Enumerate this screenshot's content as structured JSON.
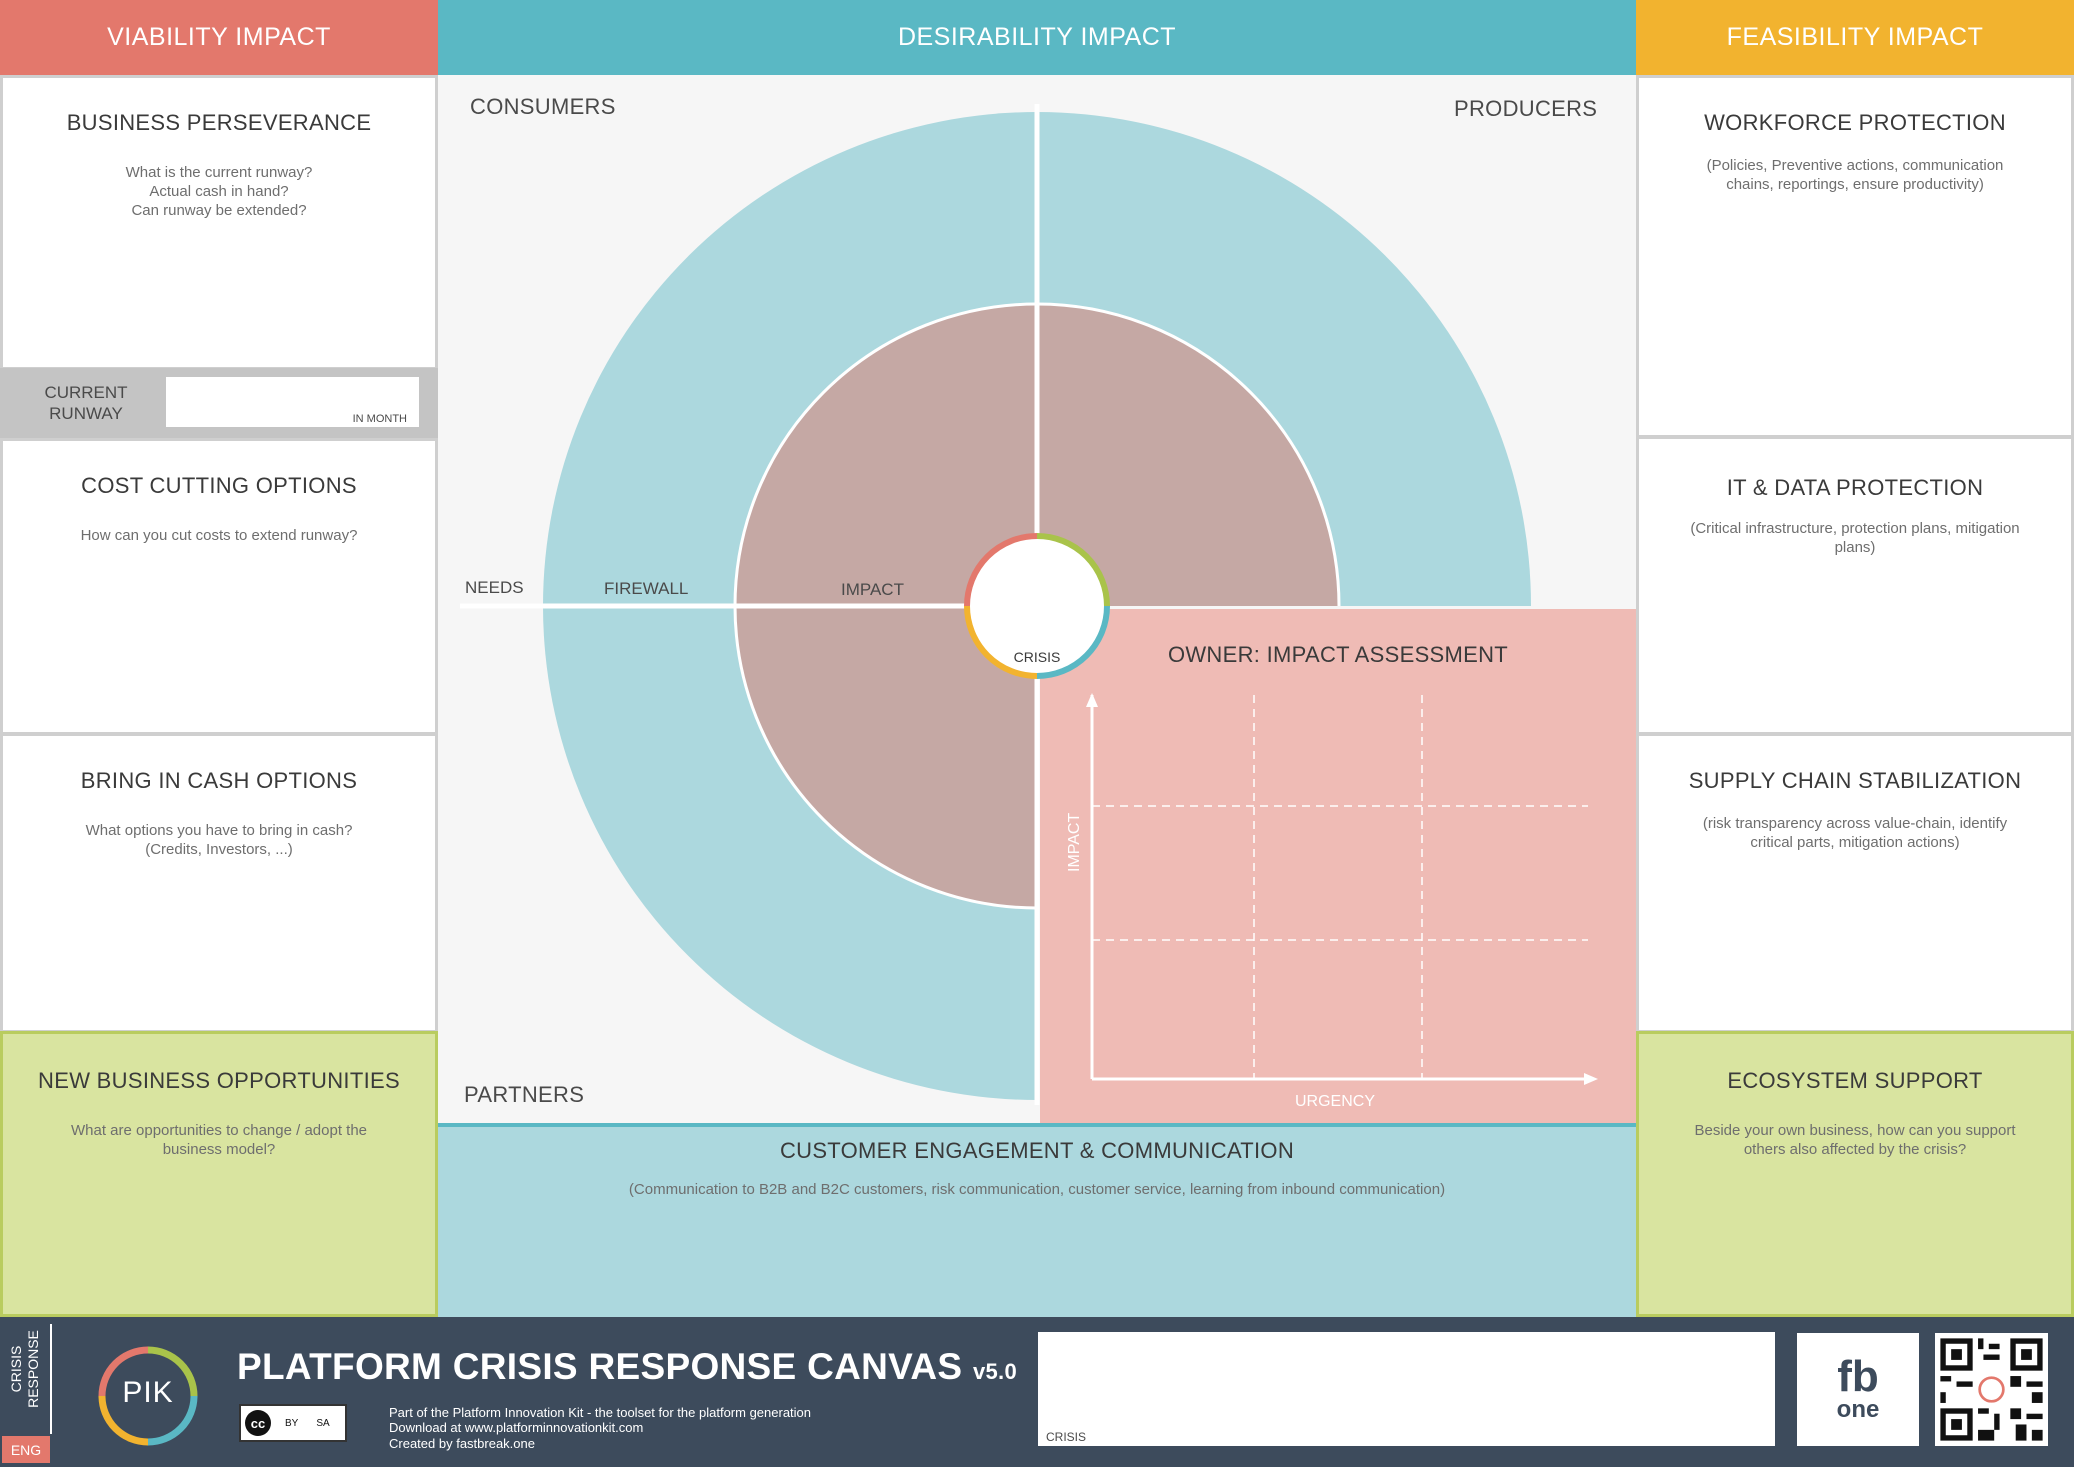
{
  "headers": {
    "viability": "VIABILITY IMPACT",
    "desirability": "DESIRABILITY IMPACT",
    "feasibility": "FEASIBILITY IMPACT"
  },
  "colors": {
    "viability": "#e3786c",
    "desirability": "#5ab8c4",
    "feasibility": "#f2b32f",
    "ring_outer": "#acd8de",
    "ring_inner": "#c5a8a4",
    "assessment": "#efbbb5",
    "ecosystem_green": "#d9e4a0",
    "footer": "#3d4b5c"
  },
  "left": {
    "perseverance": {
      "title": "BUSINESS PERSEVERANCE",
      "desc": "What is the current runway?\nActual cash in hand?\nCan runway be extended?"
    },
    "runway": {
      "label": "CURRENT\nRUNWAY",
      "unit": "IN MONTH"
    },
    "cost": {
      "title": "COST CUTTING OPTIONS",
      "desc": "How can you cut costs to extend runway?"
    },
    "cash": {
      "title": "BRING IN CASH OPTIONS",
      "desc": "What options you have to bring in cash?\n(Credits, Investors, ...)"
    },
    "opportunities": {
      "title": "NEW BUSINESS OPPORTUNITIES",
      "desc": "What are opportunities to change / adopt the\nbusiness model?"
    }
  },
  "right": {
    "workforce": {
      "title": "WORKFORCE PROTECTION",
      "desc": "(Policies, Preventive actions, communication\nchains,  reportings, ensure productivity)"
    },
    "itdata": {
      "title": "IT & DATA PROTECTION",
      "desc": "(Critical infrastructure, protection plans, mitigation\nplans)"
    },
    "supply": {
      "title": "SUPPLY CHAIN STABILIZATION",
      "desc": "(risk transparency across value-chain, identify\ncritical parts, mitigation actions)"
    },
    "ecosystem": {
      "title": "ECOSYSTEM SUPPORT",
      "desc": "Beside your own business, how can you support\nothers also affected by the crisis?"
    }
  },
  "center": {
    "consumers": "CONSUMERS",
    "producers": "PRODUCERS",
    "partners": "PARTNERS",
    "needs": "NEEDS",
    "firewall": "FIREWALL",
    "impact": "IMPACT",
    "crisis": "CRISIS",
    "assessment": {
      "title": "OWNER: IMPACT ASSESSMENT",
      "y_axis": "IMPACT",
      "x_axis": "URGENCY"
    },
    "engagement": {
      "title": "CUSTOMER ENGAGEMENT & COMMUNICATION",
      "desc": "(Communication to B2B and B2C customers, risk communication, customer service, learning from inbound communication)"
    }
  },
  "footer": {
    "side_label": "CRISIS\nRESPONSE",
    "lang": "ENG",
    "logo_text": "PIK",
    "title": "PLATFORM CRISIS RESPONSE CANVAS",
    "version": "v5.0",
    "cc_text": "cc",
    "cc_by": "BY",
    "cc_sa": "SA",
    "line1": "Part of the Platform Innovation Kit  - the toolset for the platform generation",
    "line2": "Download at www.platforminnovationkit.com",
    "line3": "Created by fastbreak.one",
    "crisis_box_label": "CRISIS",
    "fb_logo_top": "fb",
    "fb_logo_bottom": "one"
  }
}
